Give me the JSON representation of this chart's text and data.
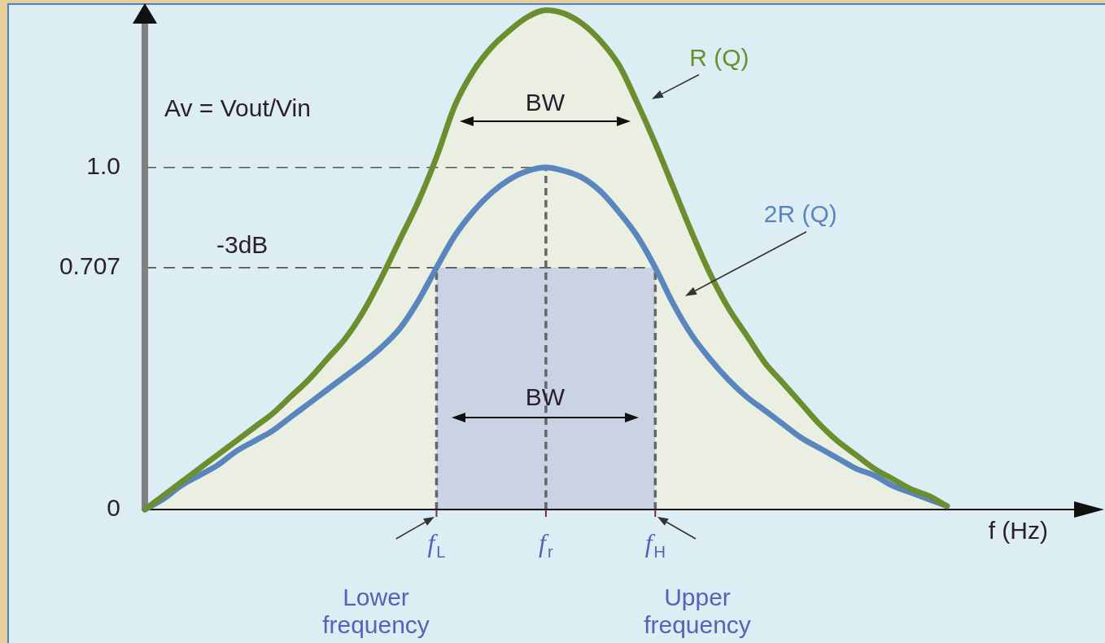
{
  "chart_data": {
    "type": "area",
    "xlabel": "f (Hz)",
    "ylabel": "Av = Vout/Vin",
    "categories": [
      null,
      null,
      null,
      null,
      null,
      null,
      null,
      null,
      null,
      null,
      null,
      null,
      null,
      null,
      null,
      null,
      "f$_{L}$",
      null,
      null,
      null,
      null,
      null,
      "f$_{r}$",
      null,
      null,
      null,
      null,
      null,
      "f$_{H}$",
      null,
      null,
      null,
      null,
      null,
      null,
      null,
      null,
      null,
      null,
      null,
      null,
      null,
      null,
      null,
      null,
      null,
      null,
      null,
      null,
      null,
      null,
      null,
      null
    ],
    "ylim": [
      0,
      1.48
    ],
    "yticks": [
      0,
      0.707,
      {
        "value": 1,
        "label": "1.0"
      }
    ],
    "series": [
      {
        "name": "R (Q)",
        "color": "#6b8e2e",
        "values": [
          0,
          0.04,
          0.08,
          0.12,
          0.16,
          0.2,
          0.24,
          0.28,
          0.33,
          0.38,
          0.44,
          0.5,
          0.58,
          0.68,
          0.79,
          0.9,
          1.03,
          1.18,
          1.28,
          1.35,
          1.4,
          1.44,
          1.46,
          1.45,
          1.42,
          1.37,
          1.3,
          1.19,
          1.07,
          0.94,
          0.81,
          0.69,
          0.59,
          0.51,
          0.43,
          0.37,
          0.31,
          0.25,
          0.2,
          0.16,
          0.12,
          0.09,
          0.06,
          0.04,
          0.01,
          null,
          null,
          null,
          null,
          null,
          null,
          null,
          null
        ]
      },
      {
        "name": "2R (Q)",
        "color": "#5a86c0",
        "values": [
          0,
          0.03,
          0.07,
          0.1,
          0.13,
          0.17,
          0.2,
          0.23,
          0.27,
          0.31,
          0.35,
          0.39,
          0.43,
          0.475,
          0.53,
          0.61,
          0.707,
          0.8,
          0.87,
          0.925,
          0.965,
          0.99,
          1,
          0.99,
          0.97,
          0.93,
          0.87,
          0.8,
          0.707,
          0.6,
          0.51,
          0.44,
          0.38,
          0.33,
          0.29,
          0.25,
          0.21,
          0.18,
          0.15,
          0.12,
          0.1,
          0.07,
          0.05,
          0.03,
          0.01,
          null,
          null,
          null,
          null,
          null,
          null,
          null,
          null
        ]
      }
    ],
    "ref_lines": [
      {
        "axis": "y",
        "value": 1,
        "line_style": "dashed",
        "color": "#555555"
      },
      {
        "axis": "y",
        "value": 0.707,
        "label": "-3dB",
        "line_style": "dashed",
        "color": "#555555"
      },
      {
        "axis": "x",
        "value": "f$_{L}$",
        "line_style": "dashed",
        "color": "#666666"
      },
      {
        "axis": "x",
        "value": "f$_{r}$",
        "line_style": "dashed",
        "color": "#666666"
      },
      {
        "axis": "x",
        "value": "f$_{H}$",
        "line_style": "dashed",
        "color": "#666666"
      }
    ],
    "bands": [
      {
        "axis": "x",
        "from": "f$_{L}$",
        "to": "f$_{H}$",
        "color": "#c9d3e3"
      }
    ],
    "annotations": [
      "BW",
      "BW",
      "Lower frequency",
      "Upper frequency"
    ]
  }
}
